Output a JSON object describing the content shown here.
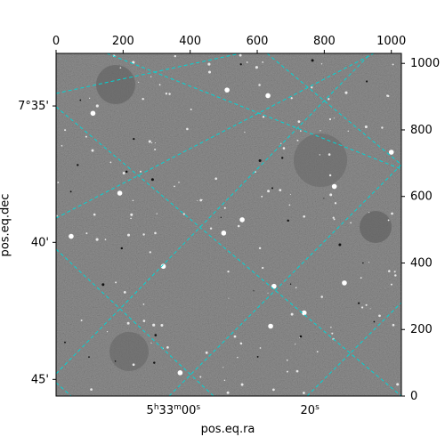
{
  "chart_data": {
    "type": "scatter",
    "subtype": "astronomical-image-wcs",
    "colormap": "grayscale",
    "grid": true,
    "grid_color": "#00d5d5",
    "grid_style": "dashed",
    "pixel_axes": {
      "x_ticks": [
        0,
        200,
        400,
        600,
        800,
        1000
      ],
      "y_ticks": [
        0,
        200,
        400,
        600,
        800,
        1000
      ],
      "xlim": [
        0,
        1030
      ],
      "ylim": [
        0,
        1030
      ],
      "x_tick_labels": [
        "0",
        "200",
        "400",
        "600",
        "800",
        "1000"
      ],
      "y_tick_labels": [
        "0",
        "200",
        "400",
        "600",
        "800",
        "1000"
      ]
    },
    "world_axes": {
      "xlabel": "pos.eq.ra",
      "ylabel": "pos.eq.dec",
      "ra_tick_labels": [
        {
          "text": "5h33m00s",
          "at": 350
        },
        {
          "text": "20s",
          "at": 757
        }
      ],
      "dec_tick_labels": [
        {
          "text": "7°35'",
          "at": 872
        },
        {
          "text": "40'",
          "at": 462
        },
        {
          "text": "45'",
          "at": 50
        }
      ]
    },
    "bright_sources": [
      {
        "x": 632,
        "y": 903
      },
      {
        "x": 555,
        "y": 530
      },
      {
        "x": 650,
        "y": 330
      },
      {
        "x": 740,
        "y": 250
      },
      {
        "x": 1000,
        "y": 733
      },
      {
        "x": 190,
        "y": 610
      },
      {
        "x": 320,
        "y": 390
      },
      {
        "x": 640,
        "y": 210
      },
      {
        "x": 860,
        "y": 340
      },
      {
        "x": 830,
        "y": 630
      },
      {
        "x": 510,
        "y": 920
      },
      {
        "x": 110,
        "y": 850
      },
      {
        "x": 45,
        "y": 480
      },
      {
        "x": 500,
        "y": 490
      },
      {
        "x": 370,
        "y": 70
      }
    ]
  }
}
